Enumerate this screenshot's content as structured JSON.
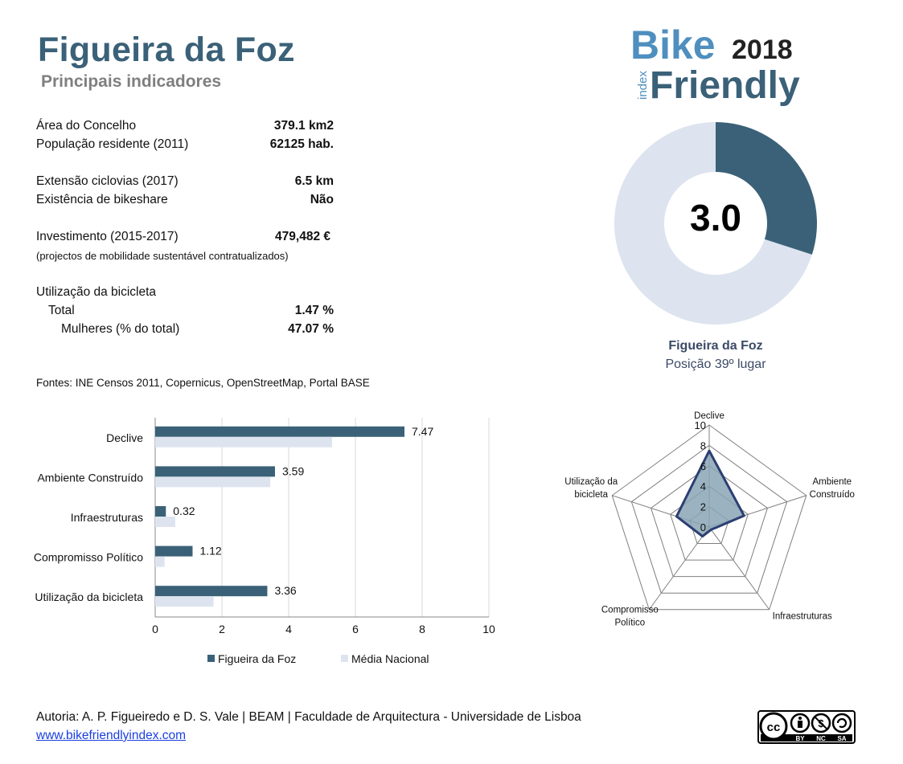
{
  "header": {
    "title": "Figueira da Foz",
    "subtitle": "Principais indicadores"
  },
  "logo": {
    "word1": "Bike",
    "year": "2018",
    "index": "index",
    "word2": "Friendly"
  },
  "indicators": [
    {
      "label": "Área do Concelho",
      "value": "379.1 km2"
    },
    {
      "label": "População residente (2011)",
      "value": "62125 hab."
    },
    {
      "label": "Extensão ciclovias (2017)",
      "value": "6.5 km"
    },
    {
      "label": "Existência de bikeshare",
      "value": "Não"
    },
    {
      "label": "Investimento (2015-2017)",
      "value": "479,482 €"
    },
    {
      "label": "(projectos de mobilidade sustentável contratualizados)",
      "value": ""
    },
    {
      "label": "Utilização da bicicleta",
      "value": ""
    },
    {
      "label": "Total",
      "value": "1.47 %"
    },
    {
      "label": "Mulheres (% do total)",
      "value": "47.07 %"
    }
  ],
  "sources": "Fontes: INE Censos 2011, Copernicus, OpenStreetMap,  Portal BASE",
  "score": {
    "value": "3.0",
    "fraction": 0.3,
    "city": "Figueira da Foz",
    "position": "Posição 39º lugar"
  },
  "colors": {
    "primary": "#3b6178",
    "secondary": "#dde4ef",
    "radar_fill": "#8aa5b5",
    "radar_line": "#2c3f73"
  },
  "chart_data": [
    {
      "type": "bar",
      "orientation": "horizontal",
      "categories": [
        "Declive",
        "Ambiente Construído",
        "Infraestruturas",
        "Compromisso Político",
        "Utilização da bicicleta"
      ],
      "series": [
        {
          "name": "Figueira da Foz",
          "values": [
            7.47,
            3.59,
            0.32,
            1.12,
            3.36
          ],
          "data_labels": [
            "7.47",
            "3.59",
            "0.32",
            "1.12",
            "3.36"
          ]
        },
        {
          "name": "Média Nacional",
          "values": [
            5.3,
            3.45,
            0.6,
            0.28,
            1.75
          ]
        }
      ],
      "xlim": [
        0,
        10
      ],
      "xticks": [
        "0",
        "2",
        "4",
        "6",
        "8",
        "10"
      ],
      "grid": true,
      "legend": "bottom"
    },
    {
      "type": "radar",
      "axes": [
        "Declive",
        "Ambiente Construído",
        "Infraestruturas",
        "Compromisso Político",
        "Utilização da bicicleta"
      ],
      "axis_labels": [
        [
          "Declive"
        ],
        [
          "Ambiente",
          "Construído"
        ],
        [
          "Infraestruturas"
        ],
        [
          "Compromisso",
          "Político"
        ],
        [
          "Utilização da",
          "bicicleta"
        ]
      ],
      "values": [
        7.47,
        3.59,
        0.32,
        1.12,
        3.36
      ],
      "rlim": [
        0,
        10
      ],
      "rticks": [
        "0",
        "2",
        "4",
        "6",
        "8",
        "10"
      ]
    }
  ],
  "footer": {
    "authors": "Autoria: A. P. Figueiredo e D. S. Vale | BEAM | Faculdade de Arquitectura - Universidade de Lisboa",
    "link": "www.bikefriendlyindex.com",
    "license": [
      "cc",
      "BY",
      "NC",
      "SA"
    ]
  }
}
